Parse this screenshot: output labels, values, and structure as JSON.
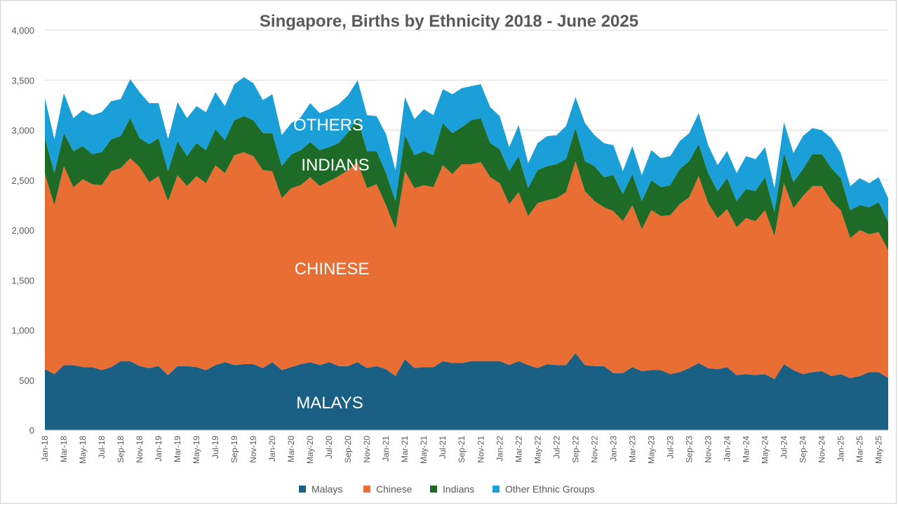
{
  "chart_data": {
    "type": "area",
    "stacked": true,
    "title": "Singapore, Births by Ethnicity 2018 - June 2025",
    "xlabel": "",
    "ylabel": "",
    "ylim": [
      0,
      4000
    ],
    "yticks": [
      0,
      500,
      1000,
      1500,
      2000,
      2500,
      3000,
      3500,
      4000
    ],
    "ytick_labels": [
      "0",
      "500",
      "1,000",
      "1,500",
      "2,000",
      "2,500",
      "3,000",
      "3,500",
      "4,000"
    ],
    "grid": true,
    "legend_position": "bottom",
    "categories": [
      "Jan-18",
      "Feb-18",
      "Mar-18",
      "Apr-18",
      "May-18",
      "Jun-18",
      "Jul-18",
      "Aug-18",
      "Sep-18",
      "Oct-18",
      "Nov-18",
      "Dec-18",
      "Jan-19",
      "Feb-19",
      "Mar-19",
      "Apr-19",
      "May-19",
      "Jun-19",
      "Jul-19",
      "Aug-19",
      "Sep-19",
      "Oct-19",
      "Nov-19",
      "Dec-19",
      "Jan-20",
      "Feb-20",
      "Mar-20",
      "Apr-20",
      "May-20",
      "Jun-20",
      "Jul-20",
      "Aug-20",
      "Sep-20",
      "Oct-20",
      "Nov-20",
      "Dec-20",
      "Jan-21",
      "Feb-21",
      "Mar-21",
      "Apr-21",
      "May-21",
      "Jun-21",
      "Jul-21",
      "Aug-21",
      "Sep-21",
      "Oct-21",
      "Nov-21",
      "Dec-21",
      "Jan-22",
      "Feb-22",
      "Mar-22",
      "Apr-22",
      "May-22",
      "Jun-22",
      "Jul-22",
      "Aug-22",
      "Sep-22",
      "Oct-22",
      "Nov-22",
      "Dec-22",
      "Jan-23",
      "Feb-23",
      "Mar-23",
      "Apr-23",
      "May-23",
      "Jun-23",
      "Jul-23",
      "Aug-23",
      "Sep-23",
      "Oct-23",
      "Nov-23",
      "Dec-23",
      "Jan-24",
      "Feb-24",
      "Mar-24",
      "Apr-24",
      "May-24",
      "Jun-24",
      "Jul-24",
      "Aug-24",
      "Sep-24",
      "Oct-24",
      "Nov-24",
      "Dec-24",
      "Jan-25",
      "Feb-25",
      "Mar-25",
      "Apr-25",
      "May-25",
      "Jun-25"
    ],
    "tick_labels": [
      "Jan-18",
      "Mar-18",
      "May-18",
      "Jul-18",
      "Sep-18",
      "Nov-18",
      "Jan-19",
      "Mar-19",
      "May-19",
      "Jul-19",
      "Sep-19",
      "Nov-19",
      "Jan-20",
      "Mar-20",
      "May-20",
      "Jul-20",
      "Sep-20",
      "Nov-20",
      "Jan-21",
      "Mar-21",
      "May-21",
      "Jul-21",
      "Sep-21",
      "Nov-21",
      "Jan-22",
      "Mar-22",
      "May-22",
      "Jul-22",
      "Sep-22",
      "Nov-22",
      "Jan-23",
      "Mar-23",
      "May-23",
      "Jul-23",
      "Sep-23",
      "Nov-23",
      "Jan-24",
      "Mar-24",
      "May-24",
      "Jul-24",
      "Sep-24",
      "Nov-24",
      "Jan-25",
      "Mar-25",
      "May-25"
    ],
    "series": [
      {
        "name": "Malays",
        "color": "#1a5f84",
        "values": [
          610,
          560,
          650,
          650,
          630,
          630,
          600,
          630,
          690,
          690,
          640,
          620,
          640,
          550,
          640,
          640,
          630,
          600,
          650,
          680,
          650,
          660,
          660,
          620,
          680,
          600,
          630,
          660,
          680,
          650,
          680,
          640,
          640,
          680,
          620,
          640,
          610,
          540,
          710,
          620,
          630,
          630,
          690,
          670,
          670,
          690,
          690,
          690,
          690,
          650,
          690,
          650,
          620,
          660,
          650,
          650,
          770,
          650,
          640,
          640,
          570,
          570,
          630,
          590,
          600,
          600,
          560,
          580,
          620,
          670,
          620,
          610,
          630,
          550,
          560,
          550,
          560,
          510,
          660,
          600,
          560,
          580,
          590,
          540,
          560,
          520,
          540,
          580,
          580,
          520
        ]
      },
      {
        "name": "Chinese",
        "color": "#e86e34",
        "values": [
          1950,
          1690,
          1990,
          1780,
          1880,
          1830,
          1850,
          1960,
          1930,
          2030,
          1990,
          1860,
          1900,
          1740,
          1910,
          1800,
          1910,
          1870,
          2000,
          1890,
          2100,
          2120,
          2080,
          1980,
          1910,
          1720,
          1790,
          1790,
          1850,
          1790,
          1810,
          1900,
          1960,
          2000,
          1800,
          1820,
          1640,
          1470,
          1880,
          1800,
          1820,
          1800,
          1960,
          1890,
          1990,
          1970,
          1990,
          1840,
          1780,
          1610,
          1690,
          1490,
          1650,
          1640,
          1670,
          1730,
          1920,
          1740,
          1650,
          1590,
          1620,
          1520,
          1620,
          1420,
          1600,
          1540,
          1590,
          1680,
          1710,
          1870,
          1650,
          1510,
          1580,
          1480,
          1560,
          1540,
          1640,
          1430,
          1810,
          1620,
          1780,
          1860,
          1850,
          1750,
          1640,
          1400,
          1460,
          1380,
          1400,
          1280
        ]
      },
      {
        "name": "Indians",
        "color": "#1e6b28",
        "values": [
          360,
          320,
          330,
          360,
          330,
          300,
          330,
          320,
          320,
          400,
          290,
          380,
          380,
          300,
          340,
          300,
          330,
          330,
          360,
          330,
          350,
          360,
          360,
          370,
          380,
          320,
          340,
          350,
          350,
          360,
          340,
          330,
          380,
          430,
          370,
          330,
          320,
          280,
          360,
          330,
          340,
          320,
          420,
          410,
          370,
          440,
          440,
          340,
          340,
          330,
          360,
          280,
          330,
          340,
          340,
          330,
          330,
          300,
          350,
          300,
          360,
          270,
          310,
          280,
          300,
          290,
          300,
          350,
          360,
          320,
          300,
          270,
          310,
          260,
          290,
          300,
          330,
          240,
          300,
          260,
          270,
          320,
          320,
          330,
          320,
          280,
          250,
          270,
          300,
          280
        ]
      },
      {
        "name": "Other Ethnic Groups",
        "color": "#1a9fd8",
        "values": [
          400,
          340,
          400,
          330,
          360,
          390,
          400,
          380,
          370,
          390,
          460,
          410,
          350,
          320,
          390,
          380,
          370,
          380,
          370,
          340,
          360,
          390,
          370,
          330,
          390,
          310,
          310,
          330,
          390,
          370,
          380,
          390,
          370,
          390,
          360,
          350,
          390,
          310,
          380,
          360,
          420,
          400,
          340,
          390,
          390,
          340,
          340,
          360,
          330,
          240,
          310,
          250,
          270,
          300,
          290,
          330,
          310,
          380,
          310,
          340,
          300,
          230,
          280,
          260,
          300,
          290,
          290,
          280,
          280,
          310,
          280,
          260,
          270,
          280,
          330,
          320,
          300,
          240,
          310,
          290,
          330,
          260,
          240,
          300,
          250,
          240,
          270,
          240,
          250,
          240
        ]
      }
    ],
    "annotations": [
      "OTHERS",
      "INDIANS",
      "CHINESE",
      "MALAYS"
    ]
  }
}
